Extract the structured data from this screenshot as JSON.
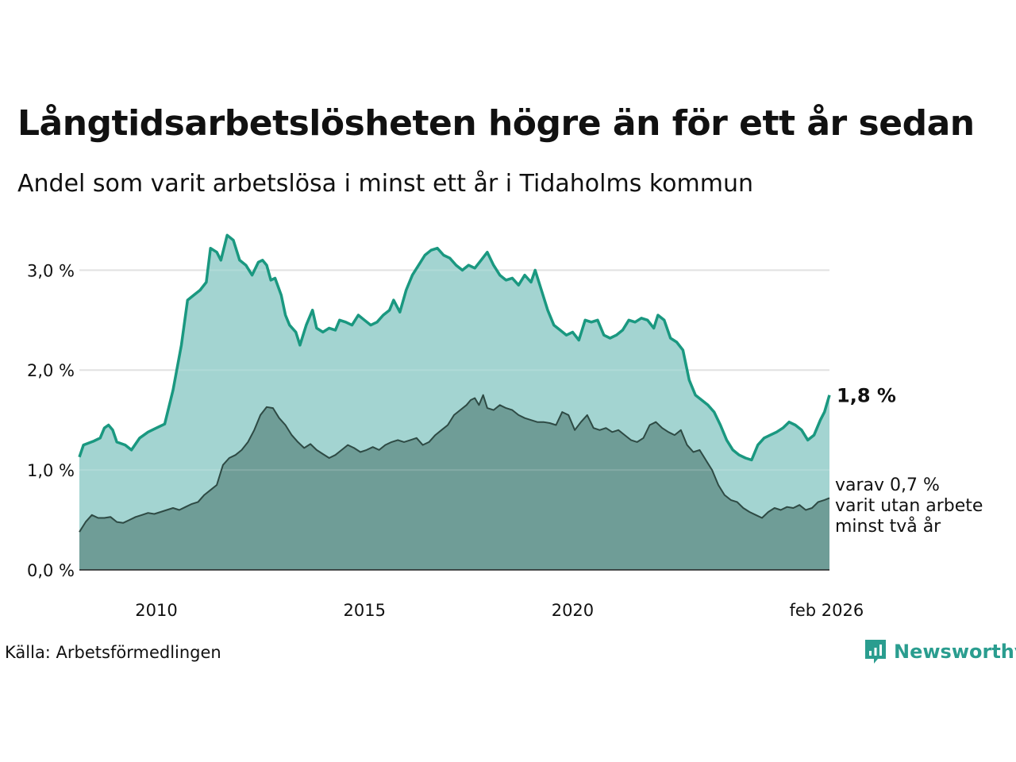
{
  "title": "Långtidsarbetslösheten högre än för ett år sedan",
  "subtitle": "Andel som varit arbetslösa i minst ett år i Tidaholms kommun",
  "source": "Källa: Arbetsförmedlingen",
  "brand": "Newsworthy",
  "colors": {
    "outer_line": "#1a9880",
    "outer_fill": "#a3d4d1",
    "inner_line": "#2e4a44",
    "inner_fill": "#6f9d97",
    "brand": "#2a9d8f",
    "grid": "#dddddd"
  },
  "chart_data": {
    "type": "area",
    "x_start": 2008.15,
    "x_end": 2026.17,
    "ylim": [
      0,
      3.4
    ],
    "yticks": [
      0,
      1,
      2,
      3
    ],
    "ytick_labels": [
      "0,0 %",
      "1,0 %",
      "2,0 %",
      "3,0 %"
    ],
    "xticks": [
      2010,
      2015,
      2020,
      2026.1
    ],
    "xtick_labels": [
      "2010",
      "2015",
      "2020",
      "feb 2026"
    ],
    "series": [
      {
        "name": "minst ett år",
        "end_label": "1,8 %",
        "points": [
          [
            2008.15,
            1.13
          ],
          [
            2008.25,
            1.25
          ],
          [
            2008.5,
            1.29
          ],
          [
            2008.65,
            1.32
          ],
          [
            2008.75,
            1.42
          ],
          [
            2008.85,
            1.45
          ],
          [
            2008.95,
            1.4
          ],
          [
            2009.05,
            1.28
          ],
          [
            2009.25,
            1.25
          ],
          [
            2009.4,
            1.2
          ],
          [
            2009.6,
            1.32
          ],
          [
            2009.8,
            1.38
          ],
          [
            2010.0,
            1.42
          ],
          [
            2010.2,
            1.46
          ],
          [
            2010.4,
            1.8
          ],
          [
            2010.6,
            2.25
          ],
          [
            2010.75,
            2.7
          ],
          [
            2010.9,
            2.75
          ],
          [
            2011.05,
            2.8
          ],
          [
            2011.2,
            2.88
          ],
          [
            2011.3,
            3.22
          ],
          [
            2011.45,
            3.18
          ],
          [
            2011.55,
            3.1
          ],
          [
            2011.7,
            3.35
          ],
          [
            2011.85,
            3.3
          ],
          [
            2012.0,
            3.1
          ],
          [
            2012.15,
            3.05
          ],
          [
            2012.3,
            2.95
          ],
          [
            2012.45,
            3.08
          ],
          [
            2012.55,
            3.1
          ],
          [
            2012.65,
            3.05
          ],
          [
            2012.75,
            2.9
          ],
          [
            2012.85,
            2.92
          ],
          [
            2013.0,
            2.75
          ],
          [
            2013.1,
            2.55
          ],
          [
            2013.2,
            2.45
          ],
          [
            2013.35,
            2.38
          ],
          [
            2013.45,
            2.25
          ],
          [
            2013.6,
            2.45
          ],
          [
            2013.75,
            2.6
          ],
          [
            2013.85,
            2.42
          ],
          [
            2014.0,
            2.38
          ],
          [
            2014.15,
            2.42
          ],
          [
            2014.3,
            2.4
          ],
          [
            2014.4,
            2.5
          ],
          [
            2014.55,
            2.48
          ],
          [
            2014.7,
            2.45
          ],
          [
            2014.85,
            2.55
          ],
          [
            2015.0,
            2.5
          ],
          [
            2015.15,
            2.45
          ],
          [
            2015.3,
            2.48
          ],
          [
            2015.45,
            2.55
          ],
          [
            2015.6,
            2.6
          ],
          [
            2015.7,
            2.7
          ],
          [
            2015.85,
            2.58
          ],
          [
            2016.0,
            2.8
          ],
          [
            2016.15,
            2.95
          ],
          [
            2016.3,
            3.05
          ],
          [
            2016.45,
            3.15
          ],
          [
            2016.6,
            3.2
          ],
          [
            2016.75,
            3.22
          ],
          [
            2016.9,
            3.15
          ],
          [
            2017.05,
            3.12
          ],
          [
            2017.2,
            3.05
          ],
          [
            2017.35,
            3.0
          ],
          [
            2017.5,
            3.05
          ],
          [
            2017.65,
            3.02
          ],
          [
            2017.8,
            3.1
          ],
          [
            2017.95,
            3.18
          ],
          [
            2018.1,
            3.05
          ],
          [
            2018.25,
            2.95
          ],
          [
            2018.4,
            2.9
          ],
          [
            2018.55,
            2.92
          ],
          [
            2018.7,
            2.85
          ],
          [
            2018.85,
            2.95
          ],
          [
            2019.0,
            2.88
          ],
          [
            2019.1,
            3.0
          ],
          [
            2019.25,
            2.8
          ],
          [
            2019.4,
            2.6
          ],
          [
            2019.55,
            2.45
          ],
          [
            2019.7,
            2.4
          ],
          [
            2019.85,
            2.35
          ],
          [
            2020.0,
            2.38
          ],
          [
            2020.15,
            2.3
          ],
          [
            2020.3,
            2.5
          ],
          [
            2020.45,
            2.48
          ],
          [
            2020.6,
            2.5
          ],
          [
            2020.75,
            2.35
          ],
          [
            2020.9,
            2.32
          ],
          [
            2021.05,
            2.35
          ],
          [
            2021.2,
            2.4
          ],
          [
            2021.35,
            2.5
          ],
          [
            2021.5,
            2.48
          ],
          [
            2021.65,
            2.52
          ],
          [
            2021.8,
            2.5
          ],
          [
            2021.95,
            2.42
          ],
          [
            2022.05,
            2.55
          ],
          [
            2022.2,
            2.5
          ],
          [
            2022.35,
            2.32
          ],
          [
            2022.5,
            2.28
          ],
          [
            2022.65,
            2.2
          ],
          [
            2022.8,
            1.9
          ],
          [
            2022.95,
            1.75
          ],
          [
            2023.1,
            1.7
          ],
          [
            2023.25,
            1.65
          ],
          [
            2023.4,
            1.58
          ],
          [
            2023.55,
            1.45
          ],
          [
            2023.7,
            1.3
          ],
          [
            2023.85,
            1.2
          ],
          [
            2024.0,
            1.15
          ],
          [
            2024.15,
            1.12
          ],
          [
            2024.3,
            1.1
          ],
          [
            2024.45,
            1.25
          ],
          [
            2024.6,
            1.32
          ],
          [
            2024.75,
            1.35
          ],
          [
            2024.9,
            1.38
          ],
          [
            2025.05,
            1.42
          ],
          [
            2025.2,
            1.48
          ],
          [
            2025.35,
            1.45
          ],
          [
            2025.5,
            1.4
          ],
          [
            2025.65,
            1.3
          ],
          [
            2025.8,
            1.35
          ],
          [
            2025.95,
            1.5
          ],
          [
            2026.05,
            1.58
          ],
          [
            2026.17,
            1.75
          ]
        ]
      },
      {
        "name": "minst två år",
        "end_label": "varav 0,7 %|varit utan arbete|minst två år",
        "points": [
          [
            2008.15,
            0.38
          ],
          [
            2008.3,
            0.48
          ],
          [
            2008.45,
            0.55
          ],
          [
            2008.6,
            0.52
          ],
          [
            2008.75,
            0.52
          ],
          [
            2008.9,
            0.53
          ],
          [
            2009.05,
            0.48
          ],
          [
            2009.2,
            0.47
          ],
          [
            2009.35,
            0.5
          ],
          [
            2009.5,
            0.53
          ],
          [
            2009.65,
            0.55
          ],
          [
            2009.8,
            0.57
          ],
          [
            2009.95,
            0.56
          ],
          [
            2010.1,
            0.58
          ],
          [
            2010.25,
            0.6
          ],
          [
            2010.4,
            0.62
          ],
          [
            2010.55,
            0.6
          ],
          [
            2010.7,
            0.63
          ],
          [
            2010.85,
            0.66
          ],
          [
            2011.0,
            0.68
          ],
          [
            2011.15,
            0.75
          ],
          [
            2011.3,
            0.8
          ],
          [
            2011.45,
            0.85
          ],
          [
            2011.6,
            1.05
          ],
          [
            2011.75,
            1.12
          ],
          [
            2011.9,
            1.15
          ],
          [
            2012.05,
            1.2
          ],
          [
            2012.2,
            1.28
          ],
          [
            2012.35,
            1.4
          ],
          [
            2012.5,
            1.55
          ],
          [
            2012.65,
            1.63
          ],
          [
            2012.8,
            1.62
          ],
          [
            2012.95,
            1.52
          ],
          [
            2013.1,
            1.45
          ],
          [
            2013.25,
            1.35
          ],
          [
            2013.4,
            1.28
          ],
          [
            2013.55,
            1.22
          ],
          [
            2013.7,
            1.26
          ],
          [
            2013.85,
            1.2
          ],
          [
            2014.0,
            1.16
          ],
          [
            2014.15,
            1.12
          ],
          [
            2014.3,
            1.15
          ],
          [
            2014.45,
            1.2
          ],
          [
            2014.6,
            1.25
          ],
          [
            2014.75,
            1.22
          ],
          [
            2014.9,
            1.18
          ],
          [
            2015.05,
            1.2
          ],
          [
            2015.2,
            1.23
          ],
          [
            2015.35,
            1.2
          ],
          [
            2015.5,
            1.25
          ],
          [
            2015.65,
            1.28
          ],
          [
            2015.8,
            1.3
          ],
          [
            2015.95,
            1.28
          ],
          [
            2016.1,
            1.3
          ],
          [
            2016.25,
            1.32
          ],
          [
            2016.4,
            1.25
          ],
          [
            2016.55,
            1.28
          ],
          [
            2016.7,
            1.35
          ],
          [
            2016.85,
            1.4
          ],
          [
            2017.0,
            1.45
          ],
          [
            2017.15,
            1.55
          ],
          [
            2017.3,
            1.6
          ],
          [
            2017.45,
            1.65
          ],
          [
            2017.55,
            1.7
          ],
          [
            2017.65,
            1.72
          ],
          [
            2017.75,
            1.65
          ],
          [
            2017.85,
            1.75
          ],
          [
            2017.95,
            1.62
          ],
          [
            2018.1,
            1.6
          ],
          [
            2018.25,
            1.65
          ],
          [
            2018.4,
            1.62
          ],
          [
            2018.55,
            1.6
          ],
          [
            2018.7,
            1.55
          ],
          [
            2018.85,
            1.52
          ],
          [
            2019.0,
            1.5
          ],
          [
            2019.15,
            1.48
          ],
          [
            2019.3,
            1.48
          ],
          [
            2019.45,
            1.47
          ],
          [
            2019.6,
            1.45
          ],
          [
            2019.75,
            1.58
          ],
          [
            2019.9,
            1.55
          ],
          [
            2020.05,
            1.4
          ],
          [
            2020.2,
            1.48
          ],
          [
            2020.35,
            1.55
          ],
          [
            2020.5,
            1.42
          ],
          [
            2020.65,
            1.4
          ],
          [
            2020.8,
            1.42
          ],
          [
            2020.95,
            1.38
          ],
          [
            2021.1,
            1.4
          ],
          [
            2021.25,
            1.35
          ],
          [
            2021.4,
            1.3
          ],
          [
            2021.55,
            1.28
          ],
          [
            2021.7,
            1.32
          ],
          [
            2021.85,
            1.45
          ],
          [
            2022.0,
            1.48
          ],
          [
            2022.15,
            1.42
          ],
          [
            2022.3,
            1.38
          ],
          [
            2022.45,
            1.35
          ],
          [
            2022.6,
            1.4
          ],
          [
            2022.75,
            1.25
          ],
          [
            2022.9,
            1.18
          ],
          [
            2023.05,
            1.2
          ],
          [
            2023.2,
            1.1
          ],
          [
            2023.35,
            1.0
          ],
          [
            2023.5,
            0.85
          ],
          [
            2023.65,
            0.75
          ],
          [
            2023.8,
            0.7
          ],
          [
            2023.95,
            0.68
          ],
          [
            2024.1,
            0.62
          ],
          [
            2024.25,
            0.58
          ],
          [
            2024.4,
            0.55
          ],
          [
            2024.55,
            0.52
          ],
          [
            2024.7,
            0.58
          ],
          [
            2024.85,
            0.62
          ],
          [
            2025.0,
            0.6
          ],
          [
            2025.15,
            0.63
          ],
          [
            2025.3,
            0.62
          ],
          [
            2025.45,
            0.65
          ],
          [
            2025.6,
            0.6
          ],
          [
            2025.75,
            0.62
          ],
          [
            2025.9,
            0.68
          ],
          [
            2026.05,
            0.7
          ],
          [
            2026.17,
            0.72
          ]
        ]
      }
    ]
  }
}
